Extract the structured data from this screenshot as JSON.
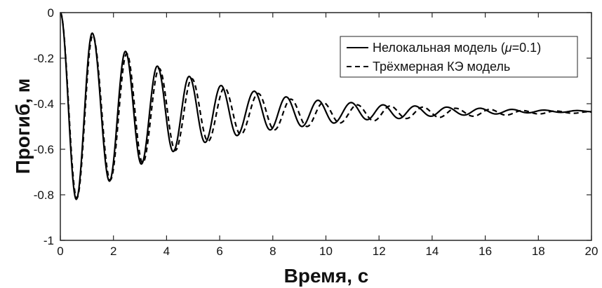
{
  "chart_data": {
    "type": "line",
    "title": "",
    "xlabel": "Время, с",
    "ylabel": "Прогиб, м",
    "xlim": [
      0,
      20
    ],
    "ylim": [
      -1,
      0
    ],
    "x_ticks": [
      0,
      2,
      4,
      6,
      8,
      10,
      12,
      14,
      16,
      18,
      20
    ],
    "y_ticks": [
      0,
      -0.2,
      -0.4,
      -0.6,
      -0.8,
      -1
    ],
    "y_tick_labels": [
      "0",
      "-0.2",
      "-0.4",
      "-0.6",
      "-0.8",
      "-1"
    ],
    "grid": false,
    "legend_position": "top-right",
    "series": [
      {
        "name": "Нелокальная модель (μ=0.1)",
        "name_parts": [
          "Нелокальная модель (",
          "μ",
          "=0.1)"
        ],
        "style": "solid",
        "color": "#000000",
        "x": [
          0,
          0.6,
          1.2,
          1.85,
          2.45,
          3.05,
          3.65,
          4.25,
          4.85,
          5.45,
          6.05,
          6.65,
          7.3,
          7.9,
          8.5,
          9.1,
          9.7,
          10.3,
          10.95,
          11.55,
          12.15,
          12.75,
          13.35,
          13.95,
          14.55,
          15.2,
          15.8,
          16.4,
          17.0,
          17.6,
          18.2,
          18.85,
          19.45,
          20
        ],
        "y": [
          0,
          -0.82,
          -0.09,
          -0.74,
          -0.17,
          -0.665,
          -0.235,
          -0.61,
          -0.28,
          -0.57,
          -0.32,
          -0.54,
          -0.345,
          -0.515,
          -0.37,
          -0.5,
          -0.385,
          -0.485,
          -0.395,
          -0.47,
          -0.405,
          -0.465,
          -0.41,
          -0.455,
          -0.415,
          -0.45,
          -0.42,
          -0.445,
          -0.425,
          -0.44,
          -0.428,
          -0.438,
          -0.43,
          -0.435
        ]
      },
      {
        "name": "Трёхмерная КЭ модель",
        "name_parts": [
          "Трёхмерная КЭ модель"
        ],
        "style": "dashed",
        "color": "#000000",
        "x": [
          0,
          0.62,
          1.22,
          1.88,
          2.5,
          3.1,
          3.72,
          4.33,
          4.95,
          5.56,
          6.18,
          6.79,
          7.45,
          8.06,
          8.68,
          9.29,
          9.9,
          10.52,
          11.18,
          11.8,
          12.42,
          13.03,
          13.65,
          14.27,
          14.88,
          15.55,
          16.17,
          16.78,
          17.4,
          18.02,
          18.64,
          19.3,
          19.92,
          20
        ],
        "y": [
          0,
          -0.815,
          -0.1,
          -0.735,
          -0.18,
          -0.66,
          -0.245,
          -0.605,
          -0.29,
          -0.565,
          -0.33,
          -0.535,
          -0.355,
          -0.515,
          -0.38,
          -0.5,
          -0.395,
          -0.485,
          -0.405,
          -0.475,
          -0.41,
          -0.465,
          -0.415,
          -0.46,
          -0.42,
          -0.455,
          -0.425,
          -0.45,
          -0.43,
          -0.445,
          -0.432,
          -0.442,
          -0.435,
          -0.437
        ]
      }
    ]
  }
}
